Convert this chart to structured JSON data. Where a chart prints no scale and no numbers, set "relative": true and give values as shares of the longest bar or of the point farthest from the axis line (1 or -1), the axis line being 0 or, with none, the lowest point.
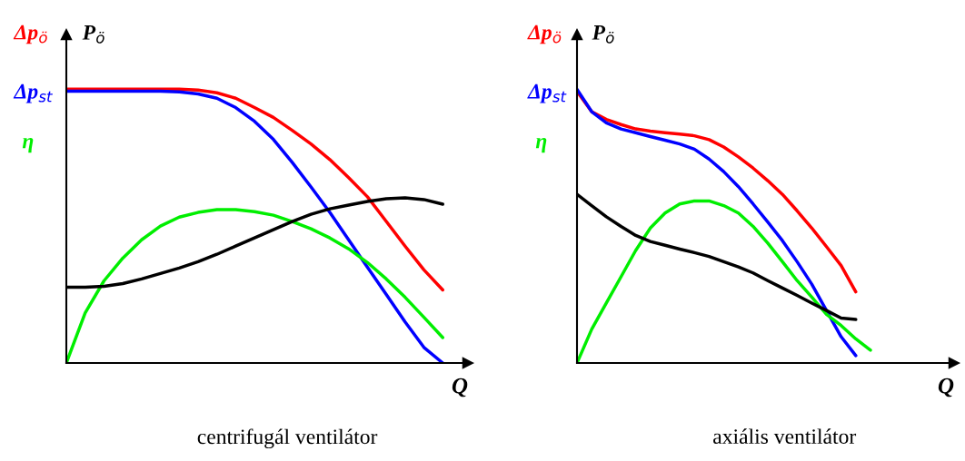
{
  "chart_data": [
    {
      "type": "line",
      "relative": true,
      "title": "centrifugál ventilátor",
      "xlabel": "Q",
      "legend": "top left",
      "categories": [
        null,
        null,
        null,
        null,
        null,
        null,
        null,
        null,
        null,
        null,
        null,
        null,
        null,
        null,
        null,
        null,
        null,
        null,
        null,
        null,
        null
      ],
      "series": [
        {
          "name": "Δp$_{ö}$",
          "color": "#ff0000",
          "values": [
            1.0,
            1.0,
            1.0,
            1.0,
            1.0,
            1.0,
            1.0,
            0.997,
            0.987,
            0.967,
            0.933,
            0.897,
            0.85,
            0.8,
            0.743,
            0.677,
            0.607,
            0.517,
            0.427,
            0.34,
            0.267
          ]
        },
        {
          "name": "Δp$_{st}$",
          "color": "#0000ff",
          "values": [
            0.993,
            0.993,
            0.993,
            0.993,
            0.993,
            0.993,
            0.99,
            0.983,
            0.967,
            0.933,
            0.883,
            0.817,
            0.733,
            0.643,
            0.55,
            0.45,
            0.35,
            0.25,
            0.15,
            0.057,
            0.0
          ]
        },
        {
          "name": "η",
          "color": "#00ee00",
          "values": [
            0.0,
            0.183,
            0.3,
            0.383,
            0.45,
            0.5,
            0.533,
            0.55,
            0.56,
            0.56,
            0.553,
            0.54,
            0.517,
            0.49,
            0.457,
            0.417,
            0.367,
            0.307,
            0.24,
            0.167,
            0.093
          ]
        },
        {
          "name": "P$_{ö}$",
          "color": "#000000",
          "values": [
            0.277,
            0.277,
            0.28,
            0.29,
            0.307,
            0.327,
            0.347,
            0.37,
            0.397,
            0.427,
            0.457,
            0.487,
            0.517,
            0.543,
            0.563,
            0.577,
            0.59,
            0.6,
            0.603,
            0.597,
            0.58
          ]
        }
      ]
    },
    {
      "type": "line",
      "relative": true,
      "title": "axiális ventilátor",
      "xlabel": "Q",
      "legend": "top left",
      "categories": [
        null,
        null,
        null,
        null,
        null,
        null,
        null,
        null,
        null,
        null,
        null,
        null,
        null,
        null,
        null,
        null,
        null,
        null,
        null,
        null,
        null
      ],
      "series": [
        {
          "name": "Δp$_{ö}$",
          "color": "#ff0000",
          "values": [
            0.992,
            0.918,
            0.89,
            0.871,
            0.855,
            0.847,
            0.841,
            0.836,
            0.83,
            0.816,
            0.789,
            0.753,
            0.712,
            0.666,
            0.616,
            0.556,
            0.493,
            0.425,
            0.356,
            0.26,
            null
          ]
        },
        {
          "name": "Δp$_{st}$",
          "color": "#0000ff",
          "values": [
            1.0,
            0.918,
            0.877,
            0.855,
            0.841,
            0.827,
            0.814,
            0.8,
            0.781,
            0.745,
            0.699,
            0.644,
            0.581,
            0.515,
            0.447,
            0.37,
            0.288,
            0.192,
            0.096,
            0.027,
            null
          ]
        },
        {
          "name": "η",
          "color": "#00ee00",
          "values": [
            0.0,
            0.123,
            0.219,
            0.315,
            0.411,
            0.493,
            0.548,
            0.581,
            0.592,
            0.592,
            0.575,
            0.548,
            0.499,
            0.438,
            0.37,
            0.301,
            0.241,
            0.178,
            0.137,
            0.088,
            0.047
          ]
        },
        {
          "name": "P$_{ö}$",
          "color": "#000000",
          "values": [
            0.616,
            0.575,
            0.534,
            0.499,
            0.466,
            0.444,
            0.43,
            0.416,
            0.403,
            0.389,
            0.37,
            0.351,
            0.329,
            0.301,
            0.274,
            0.247,
            0.219,
            0.192,
            0.164,
            0.159,
            null
          ]
        }
      ]
    }
  ]
}
